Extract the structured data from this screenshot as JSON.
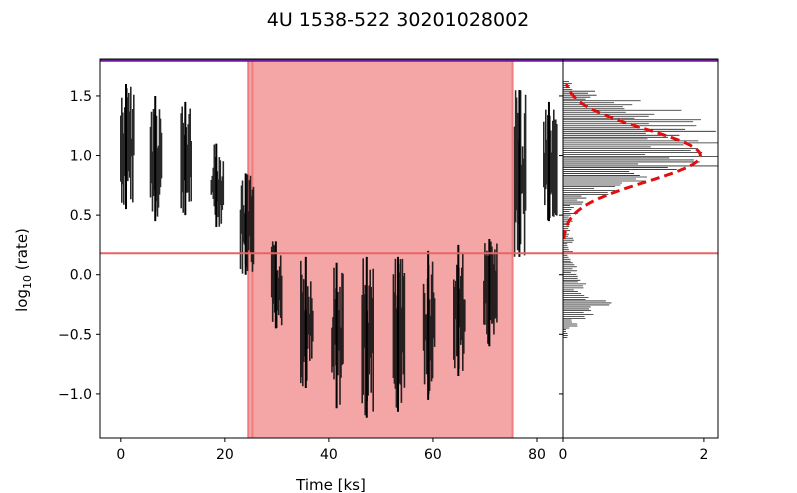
{
  "chart_data": {
    "type": "line",
    "title": "4U 1538-522 30201028002",
    "xlabel": "Time [ks]",
    "ylabel": "log10 (rate)",
    "ylabel_main": "log",
    "ylabel_sub": "10",
    "ylabel_tail": " (rate)",
    "xlim": [
      -4,
      85
    ],
    "ylim": [
      -1.37,
      1.81
    ],
    "x_ticks": [
      "0",
      "20",
      "40",
      "60",
      "80"
    ],
    "y_ticks": [
      "1.5",
      "1.0",
      "0.5",
      "0.0",
      "−0.5",
      "−1.0"
    ],
    "y_tick_values": [
      1.5,
      1.0,
      0.5,
      0.0,
      -0.5,
      -1.0
    ],
    "x_tick_values": [
      0,
      20,
      40,
      60,
      80
    ],
    "eclipse_span": [
      24.5,
      75.3
    ],
    "eclipse_edge_lines": [
      24.5,
      25.3,
      75.3
    ],
    "threshold": 0.18,
    "top_line": 1.8,
    "segments": [
      {
        "x0": 0.0,
        "x1": 2.5,
        "lo": 0.55,
        "hi": 1.6
      },
      {
        "x0": 5.7,
        "x1": 8.0,
        "lo": 0.45,
        "hi": 1.5
      },
      {
        "x0": 11.6,
        "x1": 13.6,
        "lo": 0.5,
        "hi": 1.45
      },
      {
        "x0": 17.4,
        "x1": 19.8,
        "lo": 0.4,
        "hi": 1.1
      },
      {
        "x0": 23.0,
        "x1": 25.5,
        "lo": 0.0,
        "hi": 0.85
      },
      {
        "x0": 29.0,
        "x1": 31.0,
        "lo": -0.45,
        "hi": 0.28
      },
      {
        "x0": 34.6,
        "x1": 37.0,
        "lo": -0.95,
        "hi": 0.15
      },
      {
        "x0": 40.6,
        "x1": 42.8,
        "lo": -1.12,
        "hi": 0.1
      },
      {
        "x0": 46.4,
        "x1": 48.6,
        "lo": -1.2,
        "hi": 0.15
      },
      {
        "x0": 52.4,
        "x1": 54.6,
        "lo": -1.15,
        "hi": 0.15
      },
      {
        "x0": 58.2,
        "x1": 60.4,
        "lo": -1.05,
        "hi": 0.2
      },
      {
        "x0": 64.0,
        "x1": 66.2,
        "lo": -0.85,
        "hi": 0.25
      },
      {
        "x0": 69.8,
        "x1": 72.4,
        "lo": -0.6,
        "hi": 0.3
      },
      {
        "x0": 75.7,
        "x1": 78.0,
        "lo": 0.15,
        "hi": 1.55
      },
      {
        "x0": 81.3,
        "x1": 83.8,
        "lo": 0.45,
        "hi": 1.45
      }
    ],
    "histogram": {
      "xlabel_ticks": [
        "0",
        "2"
      ],
      "xlim": [
        0,
        2.2
      ],
      "bins_center": [
        1.58,
        1.5,
        1.42,
        1.34,
        1.26,
        1.18,
        1.1,
        1.02,
        0.94,
        0.86,
        0.78,
        0.7,
        0.62,
        0.54,
        0.46,
        0.38,
        0.3,
        0.22,
        0.14,
        0.06,
        -0.02,
        -0.1,
        -0.18,
        -0.26,
        -0.34,
        -0.42,
        -0.5
      ],
      "counts": [
        0.1,
        0.4,
        0.9,
        1.3,
        1.6,
        1.8,
        2.0,
        1.9,
        1.6,
        1.2,
        0.9,
        0.6,
        0.3,
        0.15,
        0.1,
        0.08,
        0.12,
        0.1,
        0.1,
        0.2,
        0.18,
        0.25,
        0.3,
        0.5,
        0.35,
        0.15,
        0.05
      ],
      "gaussian_mean": 1.0,
      "gaussian_sigma": 0.22,
      "gaussian_amp": 1.95,
      "gaussian_range": [
        0.3,
        1.6
      ]
    },
    "colors": {
      "line": "#000000",
      "eclipse": "#f4a6a6",
      "eclipse_edge": "#ef7d7d",
      "threshold": "#e86464",
      "top_line": "#6a1b9a",
      "gauss": "#e01010"
    }
  }
}
